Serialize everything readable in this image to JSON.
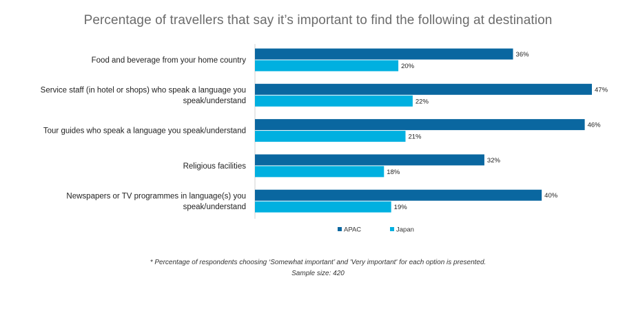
{
  "chart_data": {
    "type": "bar",
    "orientation": "horizontal",
    "title": "Percentage of travellers that say it’s important to find the following at destination",
    "categories": [
      [
        "Food and beverage from your home country"
      ],
      [
        "Service staff (in hotel or shops) who speak a language you",
        "speak/understand"
      ],
      [
        "Tour guides who speak a language you speak/understand"
      ],
      [
        "Religious facilities"
      ],
      [
        "Newspapers or TV programmes in language(s) you",
        "speak/understand"
      ]
    ],
    "series": [
      {
        "name": "APAC",
        "values": [
          36,
          47,
          46,
          32,
          40
        ],
        "color": "#0a67a0"
      },
      {
        "name": "Japan",
        "values": [
          20,
          22,
          21,
          18,
          19
        ],
        "color": "#00b0e0"
      }
    ],
    "value_suffix": "%",
    "xlim": [
      0,
      47
    ],
    "grid": false,
    "legend": "bottom"
  },
  "footnote": {
    "line1": "* Percentage of respondents choosing ‘Somewhat important’ and 'Very important' for each option is presented.",
    "line2": "Sample size: 420"
  }
}
